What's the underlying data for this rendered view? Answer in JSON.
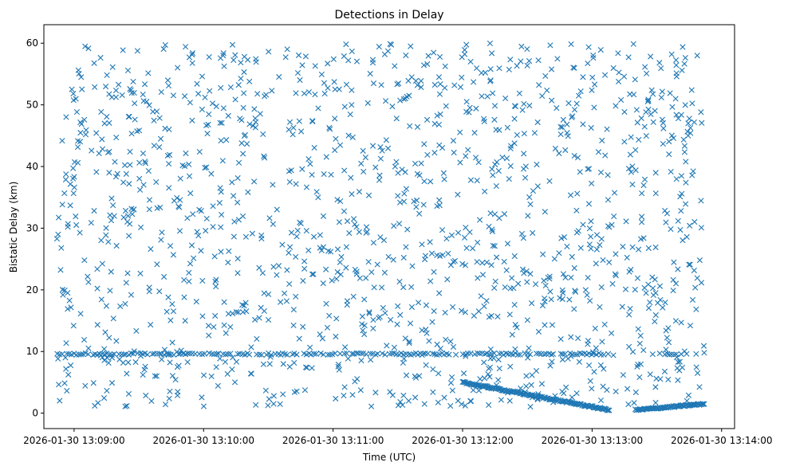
{
  "chart_data": {
    "type": "scatter",
    "title": "Detections in Delay",
    "xlabel": "Time (UTC)",
    "ylabel": "Bistatic Delay (km)",
    "marker": "x",
    "color": "#1f77b4",
    "grid": false,
    "legend": "none",
    "x_tick_labels": [
      "2026-01-30 13:09:00",
      "2026-01-30 13:10:00",
      "2026-01-30 13:11:00",
      "2026-01-30 13:12:00",
      "2026-01-30 13:13:00",
      "2026-01-30 13:14:00"
    ],
    "y_tick_labels": [
      "0",
      "10",
      "20",
      "30",
      "40",
      "50",
      "60"
    ],
    "y_ticks": [
      0,
      10,
      20,
      30,
      40,
      50,
      60
    ],
    "xlim": [
      "2026-01-30 13:08:46",
      "2026-01-30 13:14:06"
    ],
    "ylim": [
      -2.5,
      63
    ],
    "series": [
      {
        "values_summary": "dense scatter of detections; background clutter uniform 1-60 km across 13:08:52-13:13:52",
        "segments": [
          {
            "t_start": "2026-01-30 13:08:52",
            "t_end": "2026-01-30 13:13:08",
            "delay_km": 9.6,
            "kind": "constant track"
          },
          {
            "t_start": "2026-01-30 13:13:28",
            "t_end": "2026-01-30 13:13:48",
            "delay_km": 9.6,
            "kind": "constant track"
          },
          {
            "t_start": "2026-01-30 13:12:00",
            "t_end": "2026-01-30 13:13:08",
            "delay_start_km": 5.0,
            "delay_end_km": 0.5,
            "kind": "decreasing track"
          },
          {
            "t_start": "2026-01-30 13:13:20",
            "t_end": "2026-01-30 13:13:52",
            "delay_start_km": 0.5,
            "delay_end_km": 1.5,
            "kind": "increasing track"
          }
        ],
        "clutter": {
          "t_start": "2026-01-30 13:08:52",
          "t_end": "2026-01-30 13:13:52",
          "delay_min_km": 1,
          "delay_max_km": 60,
          "count": 1400
        }
      }
    ]
  }
}
